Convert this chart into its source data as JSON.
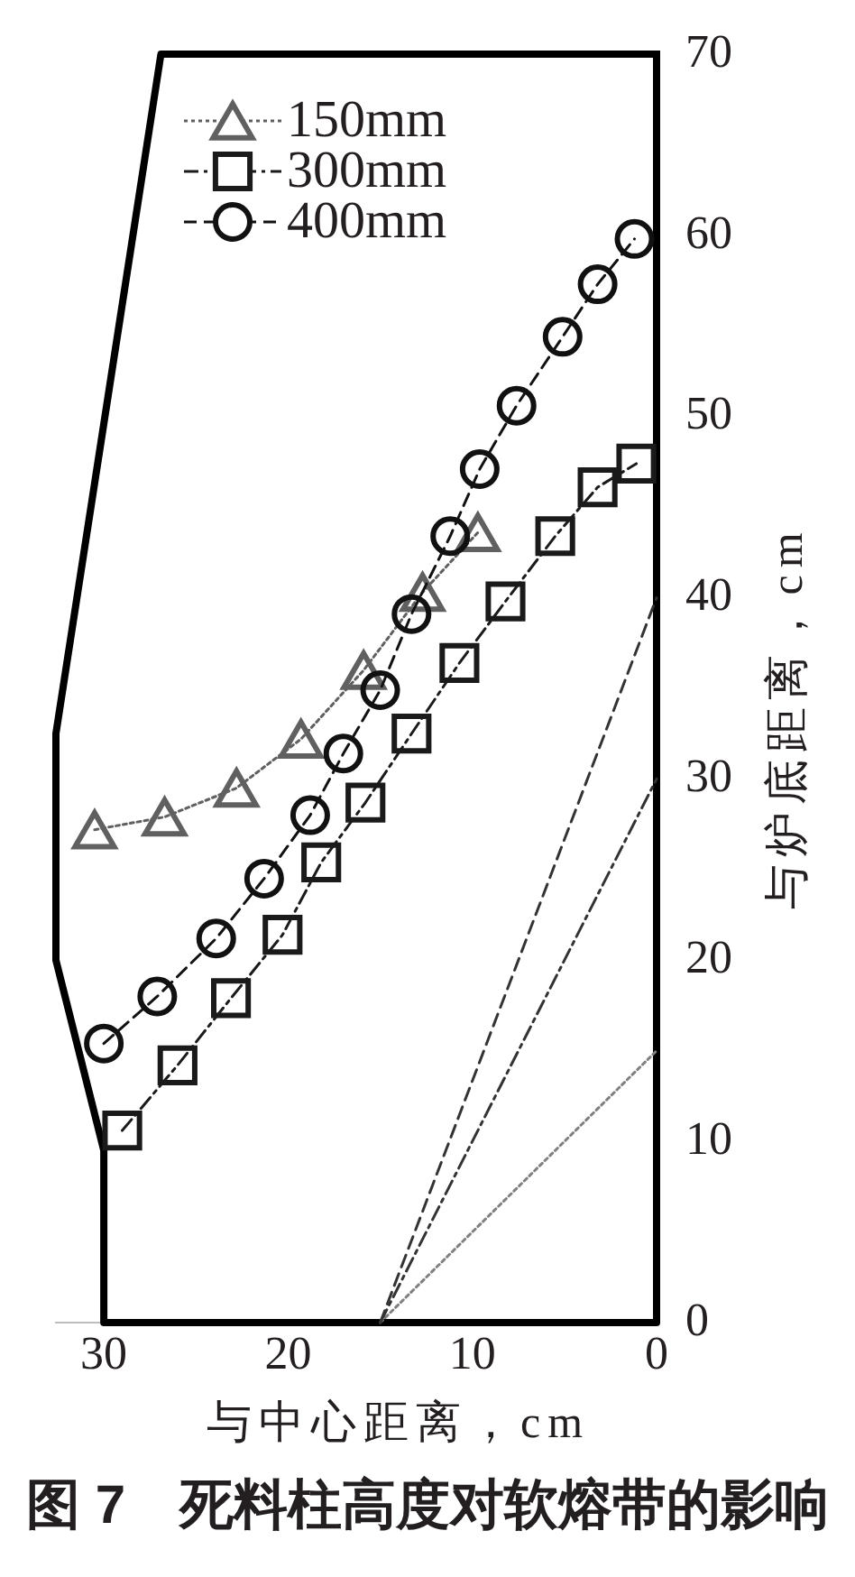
{
  "chart_data": {
    "type": "line",
    "title": "图 7　死料柱高度对软熔带的影响",
    "xlabel": "与中心距离，cm",
    "ylabel": "与炉底距离，cm",
    "xlim": [
      32.6,
      0
    ],
    "xticks": [
      30,
      20,
      10,
      0
    ],
    "ylim": [
      0,
      70
    ],
    "yticks": [
      0,
      10,
      20,
      30,
      40,
      50,
      60,
      70
    ],
    "grid": false,
    "legend": "top left",
    "series": [
      {
        "color": "#000000",
        "marker": "none",
        "line_style": "solid",
        "x": [
          0,
          26.9,
          32.6,
          32.6,
          30,
          30,
          0
        ],
        "values": [
          70,
          70,
          32.5,
          20,
          9.5,
          0,
          0
        ]
      },
      {
        "color": "#808080",
        "marker": "none",
        "line_style": "dotted",
        "x": [
          15,
          0
        ],
        "values": [
          0,
          15
        ]
      },
      {
        "color": "#333333",
        "marker": "none",
        "line_style": "dashdot",
        "x": [
          15,
          0
        ],
        "values": [
          0,
          30
        ]
      },
      {
        "color": "#333333",
        "marker": "none",
        "line_style": "dashed",
        "x": [
          15,
          0
        ],
        "values": [
          0,
          40
        ]
      },
      {
        "name": "150mm",
        "color": "#606060",
        "marker": "triangle",
        "line_style": "dotted",
        "x": [
          30.5,
          26.7,
          22.8,
          19.3,
          15.9,
          12.7,
          9.7
        ],
        "values": [
          27.2,
          27.9,
          29.5,
          32.2,
          36.0,
          40.3,
          43.6
        ]
      },
      {
        "name": "300mm",
        "color": "#1a1a1a",
        "marker": "square",
        "line_style": "dashdot",
        "x": [
          29.0,
          26.0,
          23.1,
          20.3,
          18.2,
          15.8,
          13.3,
          10.7,
          8.2,
          5.5,
          3.2,
          1.1
        ],
        "values": [
          10.6,
          14.2,
          17.9,
          21.4,
          25.4,
          28.7,
          32.5,
          36.4,
          39.8,
          43.4,
          46.1,
          47.4
        ]
      },
      {
        "name": "400mm",
        "color": "#111111",
        "marker": "circle",
        "line_style": "dashed",
        "x": [
          30.0,
          27.1,
          23.9,
          21.3,
          18.8,
          17.0,
          15.0,
          13.3,
          11.2,
          9.6,
          7.6,
          5.1,
          3.2,
          1.2
        ],
        "values": [
          15.4,
          18.0,
          21.2,
          24.5,
          28.0,
          31.4,
          34.9,
          39.1,
          43.4,
          47.1,
          50.6,
          54.4,
          57.3,
          59.8
        ]
      }
    ]
  }
}
